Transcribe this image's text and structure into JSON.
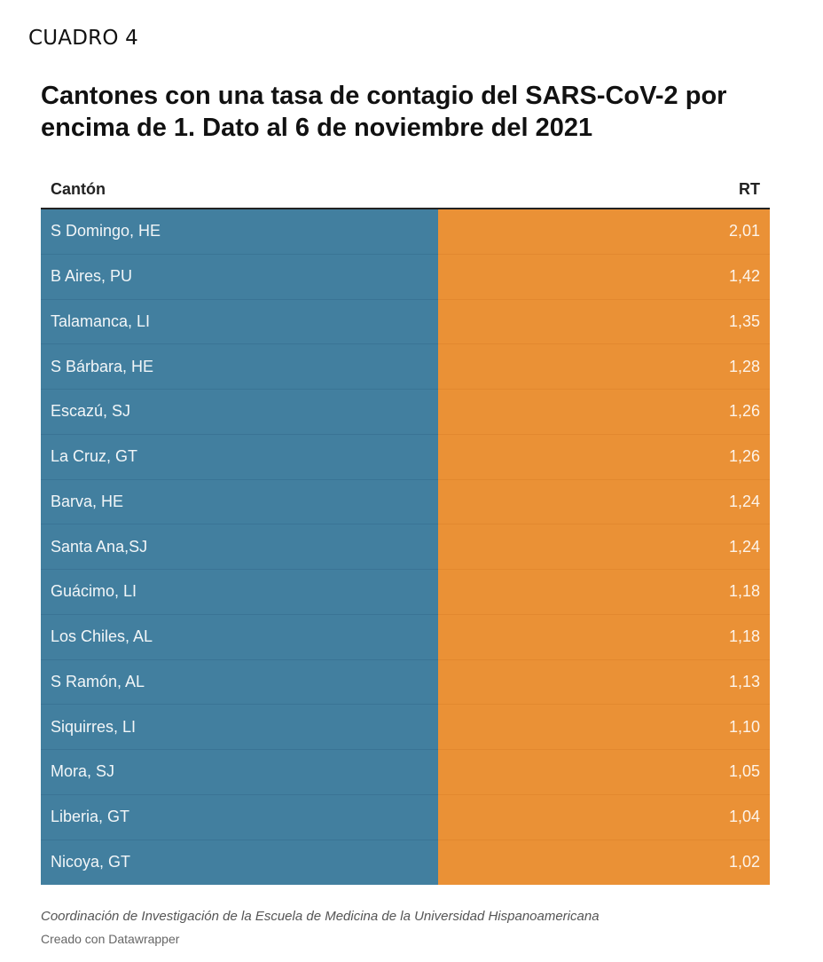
{
  "header": {
    "label": "CUADRO 4",
    "title": "Cantones con una tasa de contagio del SARS-CoV-2 por encima de 1. Dato al 6 de noviembre del 2021"
  },
  "chart_data": {
    "type": "table",
    "columns": [
      "Cantón",
      "RT"
    ],
    "rows": [
      {
        "canton": "S Domingo, HE",
        "rt": "2,01"
      },
      {
        "canton": "B Aires, PU",
        "rt": "1,42"
      },
      {
        "canton": "Talamanca, LI",
        "rt": "1,35"
      },
      {
        "canton": "S Bárbara, HE",
        "rt": "1,28"
      },
      {
        "canton": "Escazú, SJ",
        "rt": "1,26"
      },
      {
        "canton": "La Cruz, GT",
        "rt": "1,26"
      },
      {
        "canton": "Barva, HE",
        "rt": "1,24"
      },
      {
        "canton": "Santa Ana,SJ",
        "rt": "1,24"
      },
      {
        "canton": "Guácimo, LI",
        "rt": "1,18"
      },
      {
        "canton": "Los Chiles, AL",
        "rt": "1,18"
      },
      {
        "canton": "S Ramón, AL",
        "rt": "1,13"
      },
      {
        "canton": "Siquirres, LI",
        "rt": "1,10"
      },
      {
        "canton": "Mora, SJ",
        "rt": "1,05"
      },
      {
        "canton": "Liberia, GT",
        "rt": "1,04"
      },
      {
        "canton": "Nicoya, GT",
        "rt": "1,02"
      }
    ],
    "colors": {
      "canton_column": "#427f9f",
      "rt_column": "#ea9136"
    }
  },
  "footer": {
    "source": "Coordinación de Investigación de la Escuela de Medicina de la Universidad Hispanoamericana",
    "credit": "Creado con Datawrapper"
  }
}
